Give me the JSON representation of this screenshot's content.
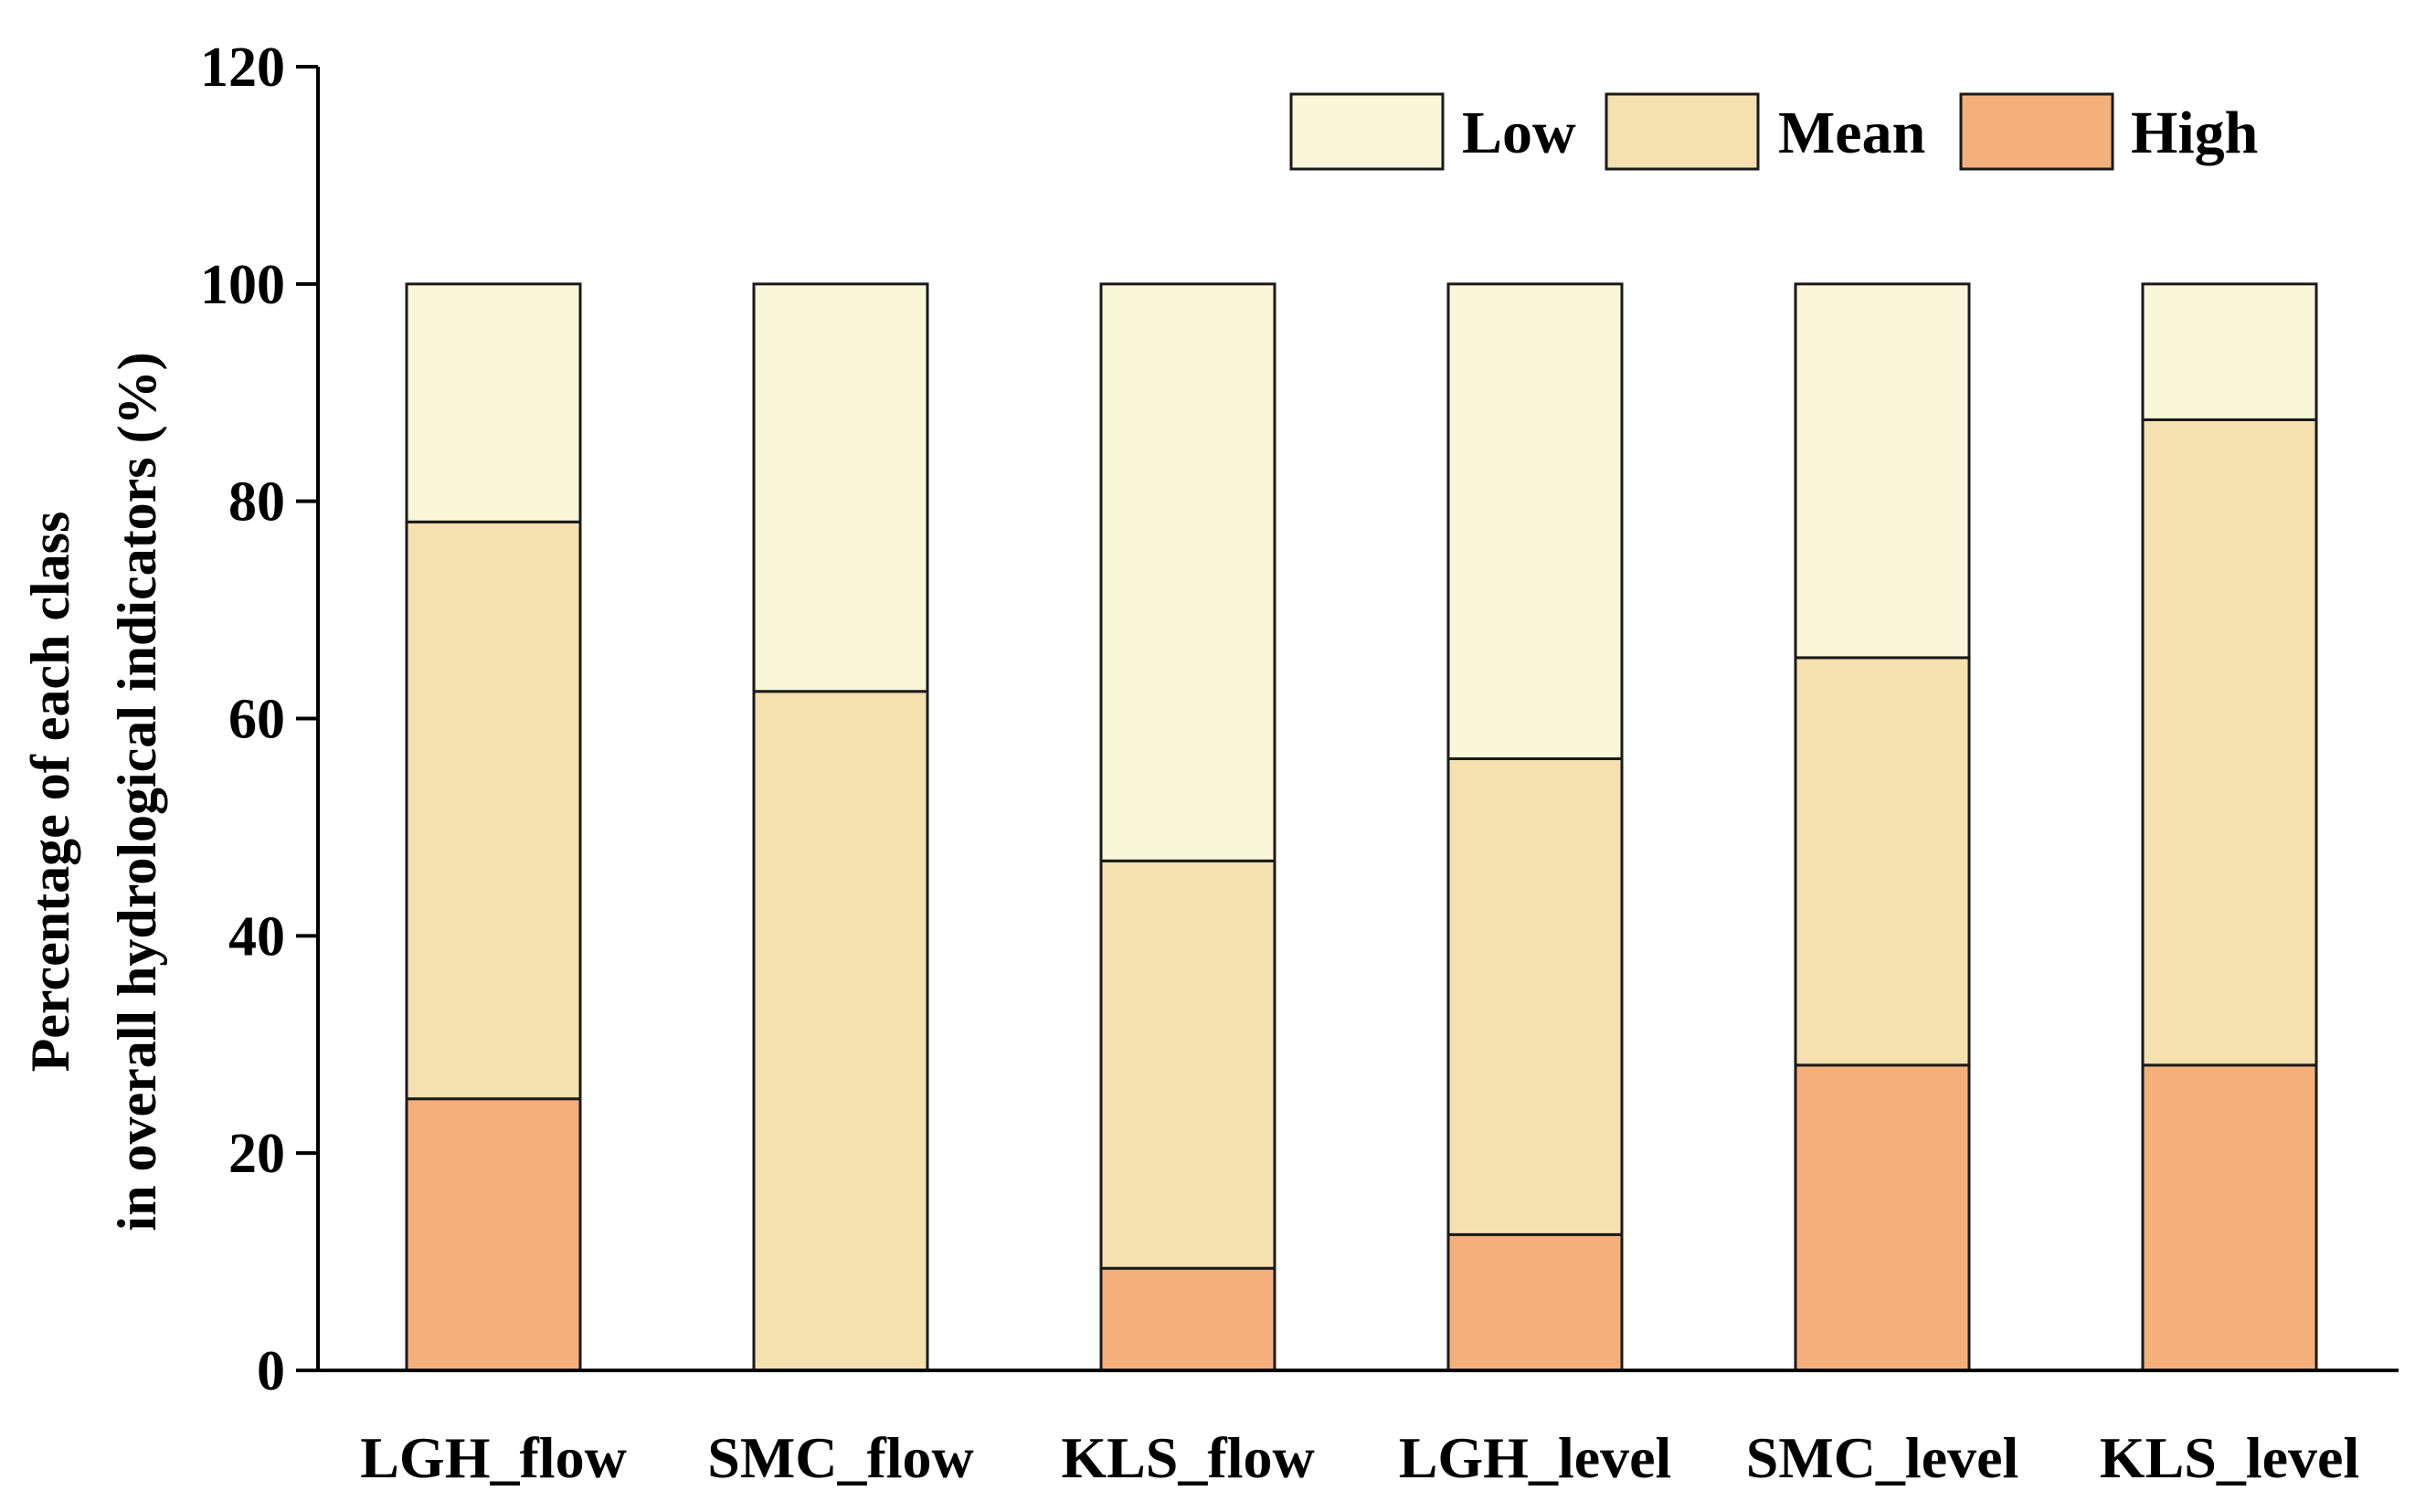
{
  "chart_data": {
    "type": "bar",
    "stacked": true,
    "categories": [
      "LGH_flow",
      "SMC_flow",
      "KLS_flow",
      "LGH_level",
      "SMC_level",
      "KLS_level"
    ],
    "series": [
      {
        "name": "High",
        "color": "#f4b07a",
        "values": [
          25,
          0,
          9.4,
          12.5,
          28.1,
          28.1
        ]
      },
      {
        "name": "Mean",
        "color": "#f5e0b0",
        "values": [
          53.1,
          62.5,
          37.5,
          43.8,
          37.5,
          59.4
        ]
      },
      {
        "name": "Low",
        "color": "#faf6da",
        "values": [
          21.9,
          37.5,
          53.1,
          43.7,
          34.4,
          12.5
        ]
      }
    ],
    "legend_order": [
      "Low",
      "Mean",
      "High"
    ],
    "legend_position": "top-right",
    "ylabel_line1": "Percentage of each class",
    "ylabel_line2": "in overall hydrological indicators (%)",
    "xlabel": "",
    "ylim": [
      0,
      120
    ],
    "yticks": [
      0,
      20,
      40,
      60,
      80,
      100,
      120
    ],
    "yticks_text": [
      "0",
      "20",
      "40",
      "60",
      "80",
      "100",
      "120"
    ],
    "grid": false
  }
}
